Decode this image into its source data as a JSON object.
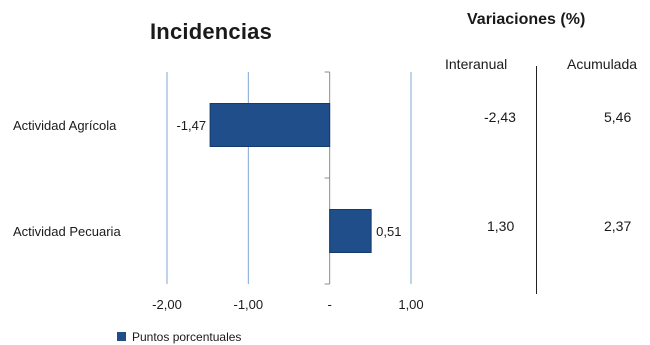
{
  "chart_data": {
    "type": "bar",
    "orientation": "horizontal",
    "title": "Incidencias",
    "categories": [
      "Actividad Agrícola",
      "Actividad Pecuaria"
    ],
    "series": [
      {
        "name": "Puntos porcentuales",
        "values": [
          -1.47,
          0.51
        ],
        "data_labels": [
          "-1,47",
          "0,51"
        ],
        "color": "#1f4e8a"
      }
    ],
    "xlim": [
      -2,
      1
    ],
    "xticks": [
      -2,
      -1,
      0,
      1
    ],
    "xtick_labels": [
      "-2,00",
      "-1,00",
      "-",
      "1,00"
    ],
    "grid": true,
    "gridline_color": "#7fa7d6",
    "legend": "bottom-left"
  },
  "table": {
    "title": "Variaciones (%)",
    "columns": [
      "Interanual",
      "Acumulada"
    ],
    "rows": [
      {
        "category": "Actividad Agrícola",
        "values": [
          "-2,43",
          "5,46"
        ]
      },
      {
        "category": "Actividad Pecuaria",
        "values": [
          "1,30",
          "2,37"
        ]
      }
    ]
  }
}
